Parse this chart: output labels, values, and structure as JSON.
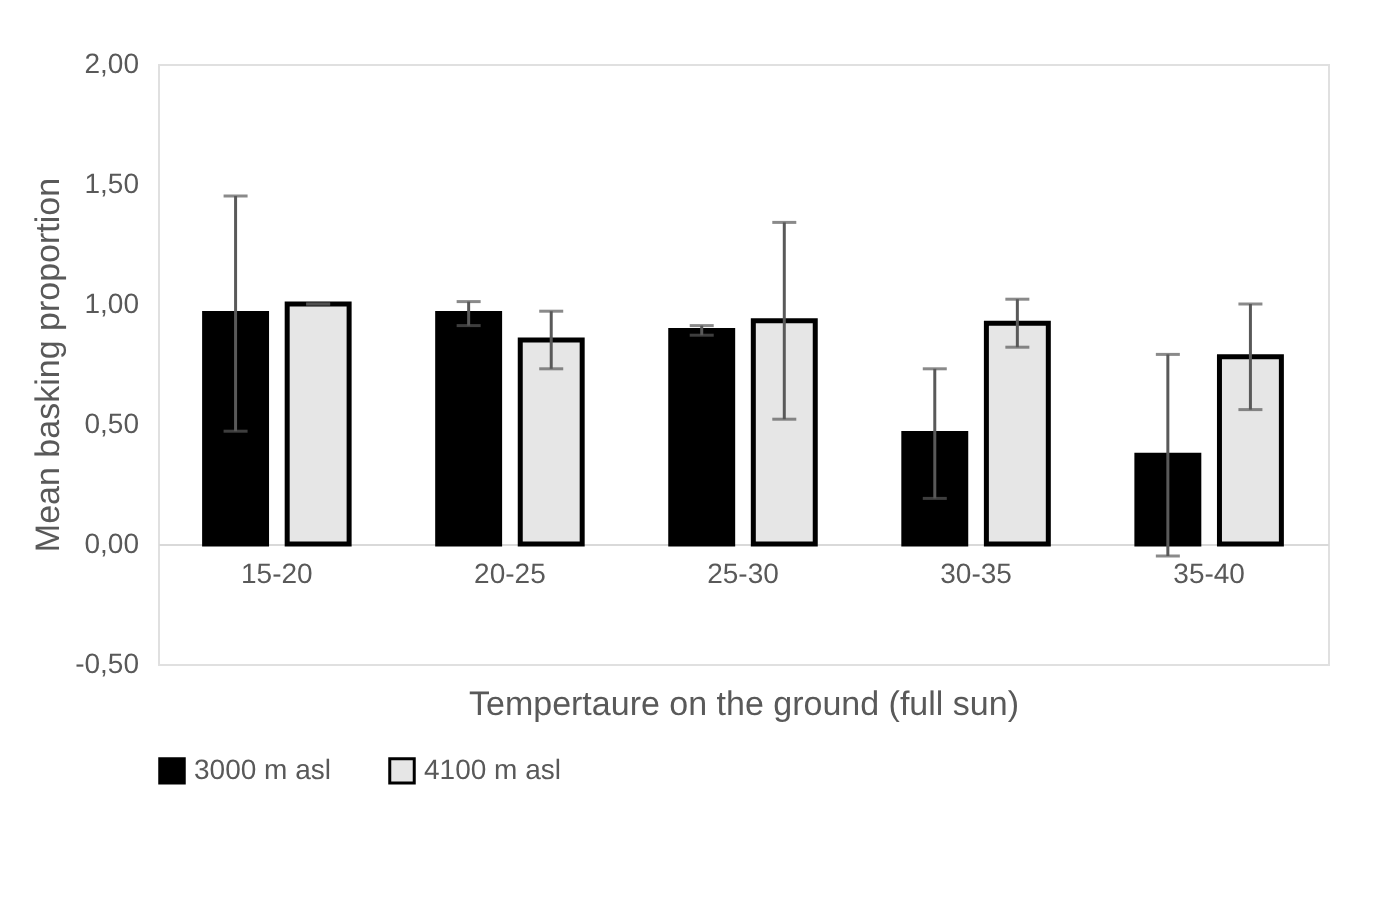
{
  "chart_data": {
    "type": "bar",
    "xlabel": "Tempertaure on the ground (full sun)",
    "ylabel": "Mean basking proportion",
    "categories": [
      "15-20",
      "20-25",
      "25-30",
      "30-35",
      "35-40"
    ],
    "series": [
      {
        "name": "3000 m asl",
        "color": "#000000",
        "values": [
          0.96,
          0.96,
          0.89,
          0.46,
          0.37
        ],
        "errors": [
          0.49,
          0.05,
          0.02,
          0.27,
          0.42
        ]
      },
      {
        "name": "4100 m asl",
        "color": "#e6e6e6",
        "values": [
          1.0,
          0.85,
          0.93,
          0.92,
          0.78
        ],
        "errors": [
          0.0,
          0.12,
          0.41,
          0.1,
          0.22
        ]
      }
    ],
    "ylim": [
      -0.5,
      2.0
    ],
    "yticks": [
      {
        "value": -0.5,
        "label": "-0,50"
      },
      {
        "value": 0,
        "label": "0,00"
      },
      {
        "value": 0.5,
        "label": "0,50"
      },
      {
        "value": 1.0,
        "label": "1,00"
      },
      {
        "value": 1.5,
        "label": "1,50"
      },
      {
        "value": 2.0,
        "label": "2,00"
      }
    ],
    "grid": false,
    "legend": "bottom"
  }
}
